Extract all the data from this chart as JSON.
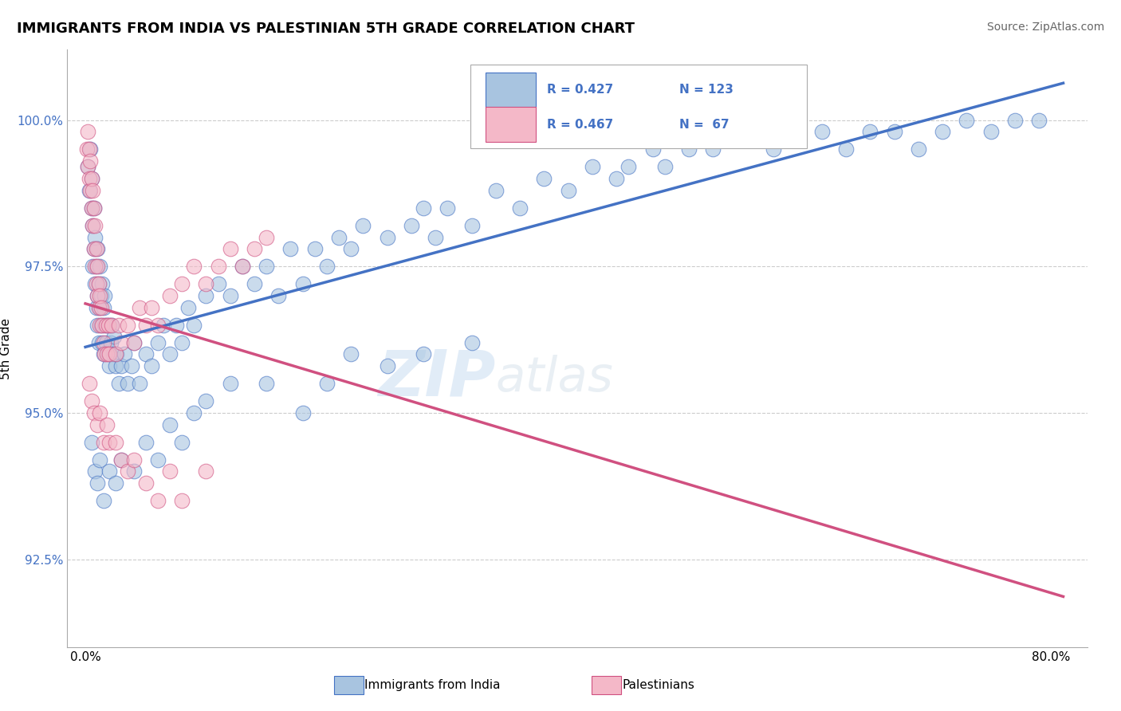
{
  "title": "IMMIGRANTS FROM INDIA VS PALESTINIAN 5TH GRADE CORRELATION CHART",
  "source_text": "Source: ZipAtlas.com",
  "ylabel": "5th Grade",
  "r_india": "0.427",
  "n_india": "123",
  "r_pal": "0.467",
  "n_pal": "67",
  "india_color": "#a8c4e0",
  "india_line_color": "#4472c4",
  "pal_color": "#f4b8c8",
  "pal_line_color": "#d05080",
  "watermark_zip": "ZIP",
  "watermark_atlas": "atlas",
  "legend_label_india": "Immigrants from India",
  "legend_label_pal": "Palestinians",
  "y_tick_values": [
    92.5,
    95.0,
    97.5,
    100.0
  ],
  "xlim_min": -1.5,
  "xlim_max": 83,
  "ylim_min": 91.0,
  "ylim_max": 101.2,
  "india_points_x": [
    0.2,
    0.3,
    0.4,
    0.5,
    0.5,
    0.6,
    0.6,
    0.7,
    0.7,
    0.8,
    0.8,
    0.9,
    0.9,
    1.0,
    1.0,
    1.0,
    1.1,
    1.1,
    1.2,
    1.2,
    1.3,
    1.3,
    1.4,
    1.4,
    1.5,
    1.5,
    1.6,
    1.6,
    1.7,
    1.8,
    1.9,
    2.0,
    2.0,
    2.1,
    2.2,
    2.3,
    2.4,
    2.5,
    2.6,
    2.8,
    3.0,
    3.2,
    3.5,
    3.8,
    4.0,
    4.5,
    5.0,
    5.5,
    6.0,
    6.5,
    7.0,
    7.5,
    8.0,
    8.5,
    9.0,
    10.0,
    11.0,
    12.0,
    13.0,
    14.0,
    15.0,
    16.0,
    17.0,
    18.0,
    19.0,
    20.0,
    21.0,
    22.0,
    23.0,
    25.0,
    27.0,
    28.0,
    29.0,
    30.0,
    32.0,
    34.0,
    36.0,
    38.0,
    40.0,
    42.0,
    44.0,
    45.0,
    47.0,
    48.0,
    50.0,
    52.0,
    54.0,
    55.0,
    57.0,
    59.0,
    61.0,
    63.0,
    65.0,
    67.0,
    69.0,
    71.0,
    73.0,
    75.0,
    77.0,
    79.0,
    0.5,
    0.8,
    1.0,
    1.2,
    1.5,
    2.0,
    2.5,
    3.0,
    4.0,
    5.0,
    6.0,
    7.0,
    8.0,
    9.0,
    10.0,
    12.0,
    15.0,
    18.0,
    20.0,
    22.0,
    25.0,
    28.0,
    32.0
  ],
  "india_points_y": [
    99.2,
    98.8,
    99.5,
    98.5,
    99.0,
    97.5,
    98.2,
    97.8,
    98.5,
    97.2,
    98.0,
    96.8,
    97.5,
    96.5,
    97.0,
    97.8,
    96.2,
    97.2,
    96.8,
    97.5,
    96.5,
    97.0,
    96.2,
    97.2,
    96.0,
    96.8,
    96.5,
    97.0,
    96.2,
    96.5,
    96.0,
    95.8,
    96.5,
    96.2,
    96.5,
    96.0,
    96.3,
    95.8,
    96.0,
    95.5,
    95.8,
    96.0,
    95.5,
    95.8,
    96.2,
    95.5,
    96.0,
    95.8,
    96.2,
    96.5,
    96.0,
    96.5,
    96.2,
    96.8,
    96.5,
    97.0,
    97.2,
    97.0,
    97.5,
    97.2,
    97.5,
    97.0,
    97.8,
    97.2,
    97.8,
    97.5,
    98.0,
    97.8,
    98.2,
    98.0,
    98.2,
    98.5,
    98.0,
    98.5,
    98.2,
    98.8,
    98.5,
    99.0,
    98.8,
    99.2,
    99.0,
    99.2,
    99.5,
    99.2,
    99.5,
    99.5,
    99.8,
    99.8,
    99.5,
    99.8,
    99.8,
    99.5,
    99.8,
    99.8,
    99.5,
    99.8,
    100.0,
    99.8,
    100.0,
    100.0,
    94.5,
    94.0,
    93.8,
    94.2,
    93.5,
    94.0,
    93.8,
    94.2,
    94.0,
    94.5,
    94.2,
    94.8,
    94.5,
    95.0,
    95.2,
    95.5,
    95.5,
    95.0,
    95.5,
    96.0,
    95.8,
    96.0,
    96.2
  ],
  "pal_points_x": [
    0.1,
    0.2,
    0.2,
    0.3,
    0.3,
    0.4,
    0.4,
    0.5,
    0.5,
    0.6,
    0.6,
    0.7,
    0.7,
    0.8,
    0.8,
    0.9,
    0.9,
    1.0,
    1.0,
    1.1,
    1.1,
    1.2,
    1.2,
    1.3,
    1.4,
    1.5,
    1.6,
    1.7,
    1.8,
    1.9,
    2.0,
    2.2,
    2.5,
    2.8,
    3.0,
    3.5,
    4.0,
    4.5,
    5.0,
    5.5,
    6.0,
    7.0,
    8.0,
    9.0,
    10.0,
    11.0,
    12.0,
    13.0,
    14.0,
    15.0,
    0.3,
    0.5,
    0.7,
    1.0,
    1.2,
    1.5,
    1.8,
    2.0,
    2.5,
    3.0,
    3.5,
    4.0,
    5.0,
    6.0,
    7.0,
    8.0,
    10.0
  ],
  "pal_points_y": [
    99.5,
    99.2,
    99.8,
    99.0,
    99.5,
    98.8,
    99.3,
    98.5,
    99.0,
    98.2,
    98.8,
    97.8,
    98.5,
    97.5,
    98.2,
    97.2,
    97.8,
    97.0,
    97.5,
    96.8,
    97.2,
    96.5,
    97.0,
    96.8,
    96.5,
    96.2,
    96.0,
    96.5,
    96.0,
    96.5,
    96.0,
    96.5,
    96.0,
    96.5,
    96.2,
    96.5,
    96.2,
    96.8,
    96.5,
    96.8,
    96.5,
    97.0,
    97.2,
    97.5,
    97.2,
    97.5,
    97.8,
    97.5,
    97.8,
    98.0,
    95.5,
    95.2,
    95.0,
    94.8,
    95.0,
    94.5,
    94.8,
    94.5,
    94.5,
    94.2,
    94.0,
    94.2,
    93.8,
    93.5,
    94.0,
    93.5,
    94.0
  ]
}
